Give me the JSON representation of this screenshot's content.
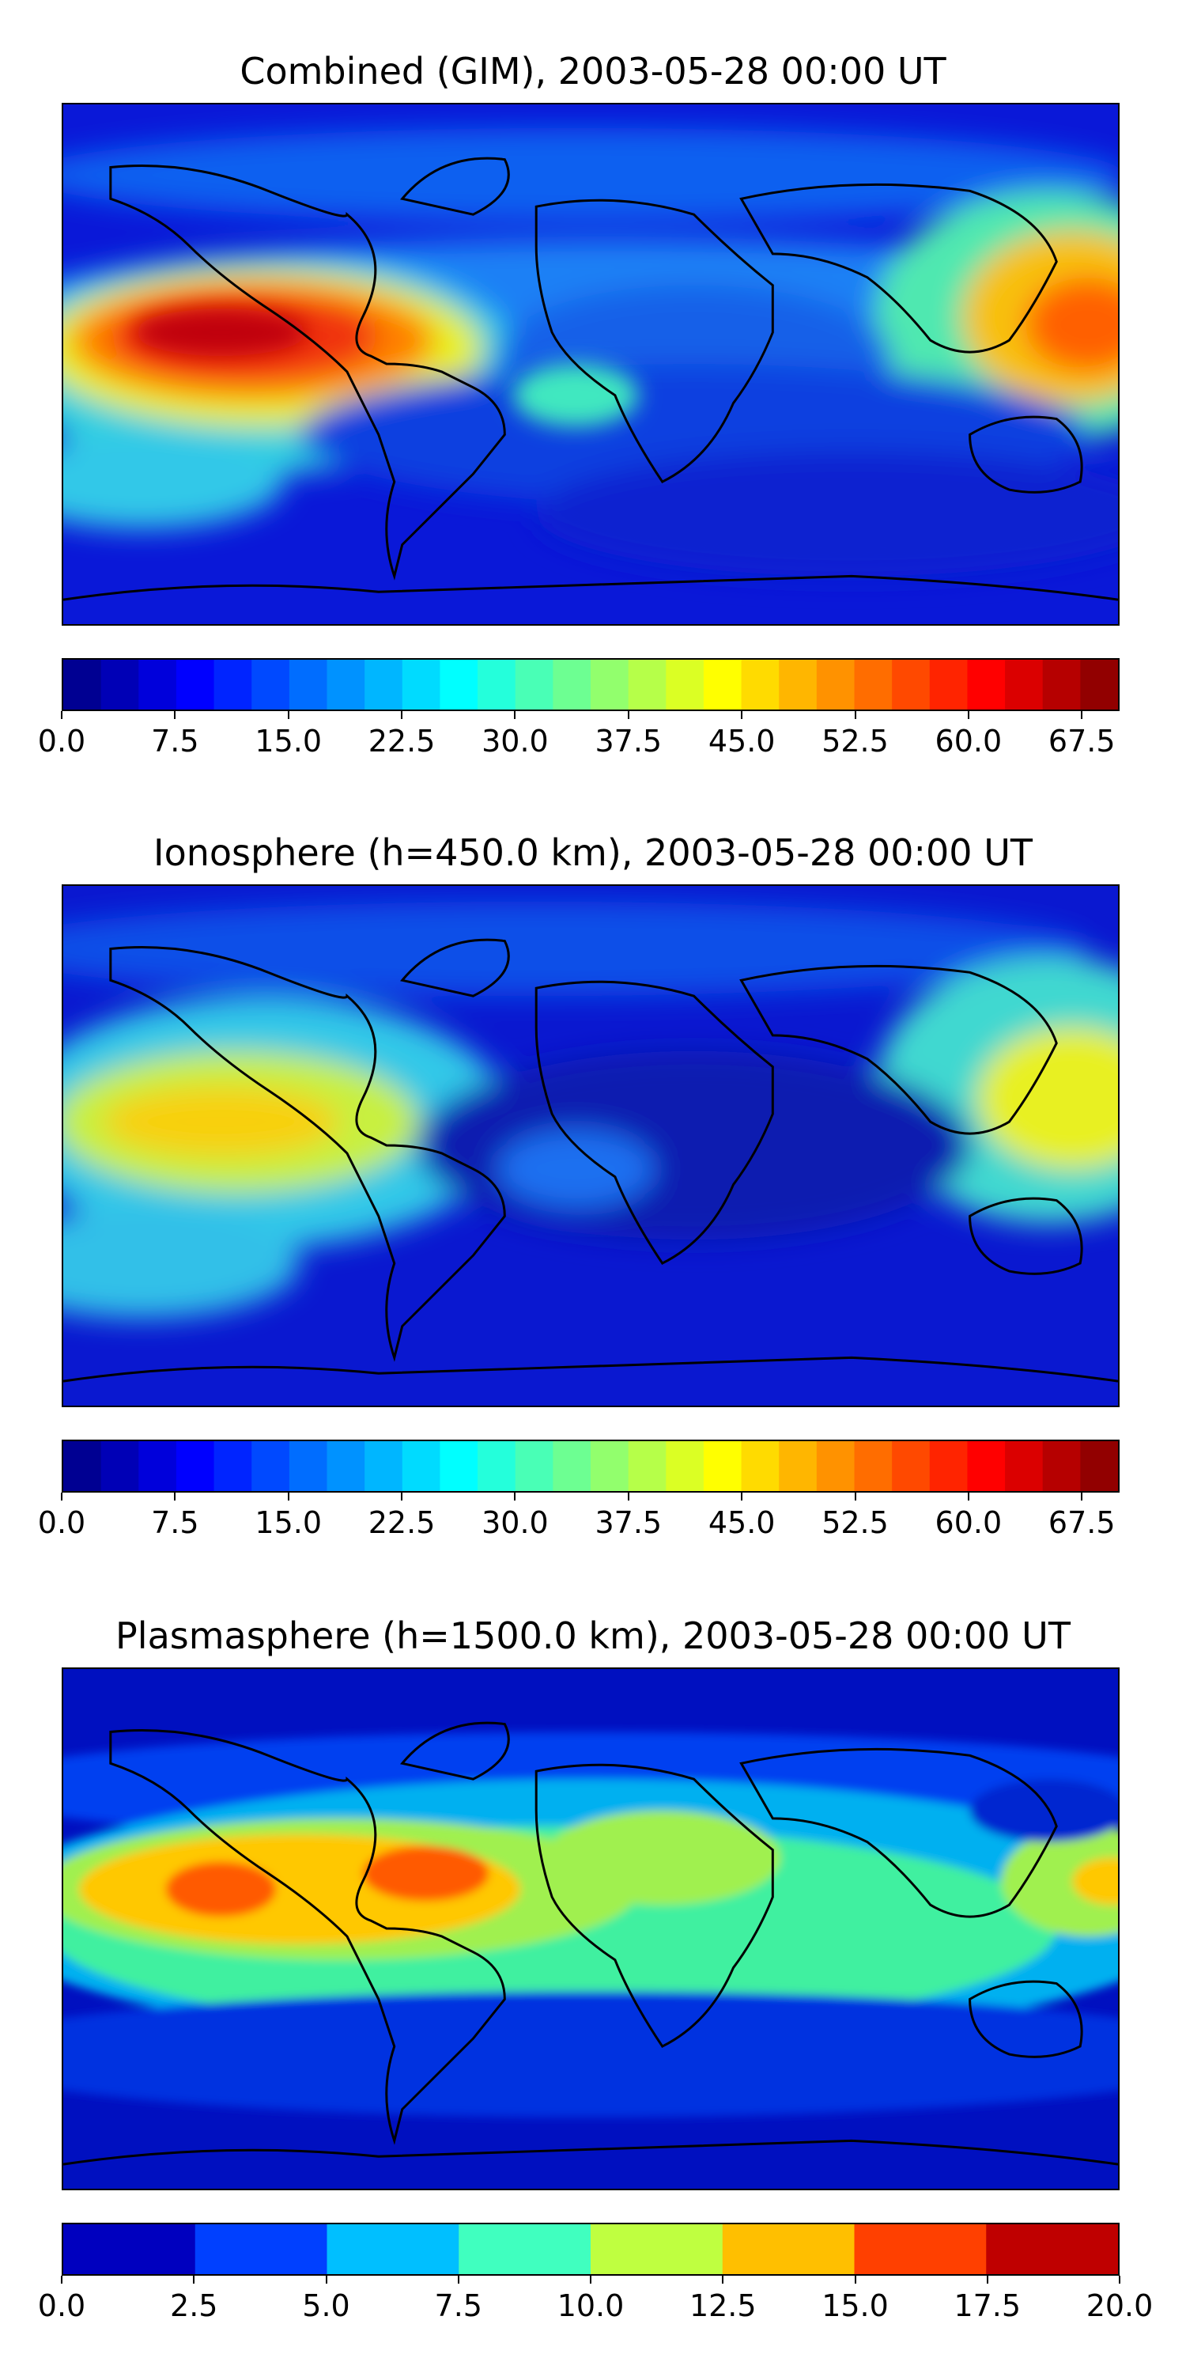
{
  "panels": [
    {
      "title": "Combined (GIM), 2003-05-28 00:00 UT",
      "colorbar": {
        "min": 0.0,
        "max": 70.0,
        "levels": 28,
        "tick_labels": [
          "0.0",
          "7.5",
          "15.0",
          "22.5",
          "30.0",
          "37.5",
          "45.0",
          "52.5",
          "60.0",
          "67.5"
        ],
        "tick_values": [
          0.0,
          7.5,
          15.0,
          22.5,
          30.0,
          37.5,
          45.0,
          52.5,
          60.0,
          67.5
        ]
      }
    },
    {
      "title": "Ionosphere  (h=450.0 km), 2003-05-28 00:00 UT",
      "colorbar": {
        "min": 0.0,
        "max": 70.0,
        "levels": 28,
        "tick_labels": [
          "0.0",
          "7.5",
          "15.0",
          "22.5",
          "30.0",
          "37.5",
          "45.0",
          "52.5",
          "60.0",
          "67.5"
        ],
        "tick_values": [
          0.0,
          7.5,
          15.0,
          22.5,
          30.0,
          37.5,
          45.0,
          52.5,
          60.0,
          67.5
        ]
      }
    },
    {
      "title": "Plasmasphere (h=1500.0 km), 2003-05-28 00:00 UT",
      "colorbar": {
        "min": 0.0,
        "max": 20.0,
        "levels": 8,
        "tick_labels": [
          "0.0",
          "2.5",
          "5.0",
          "7.5",
          "10.0",
          "12.5",
          "15.0",
          "17.5",
          "20.0"
        ],
        "tick_values": [
          0.0,
          2.5,
          5.0,
          7.5,
          10.0,
          12.5,
          15.0,
          17.5,
          20.0
        ]
      }
    }
  ]
}
